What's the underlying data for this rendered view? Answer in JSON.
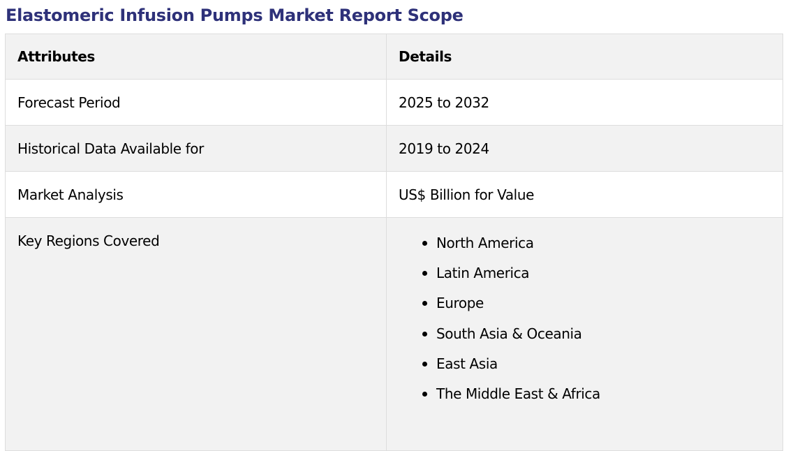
{
  "title": "Elastomeric Infusion Pumps Market Report Scope",
  "table": {
    "headers": [
      "Attributes",
      "Details"
    ],
    "rows": [
      {
        "attribute": "Forecast Period",
        "detail": "2025 to 2032"
      },
      {
        "attribute": "Historical Data Available for",
        "detail": "2019 to 2024"
      },
      {
        "attribute": "Market Analysis",
        "detail": "US$ Billion for Value"
      }
    ],
    "regions": {
      "attribute": "Key Regions Covered",
      "items": [
        "North America",
        "Latin America",
        "Europe",
        "South Asia & Oceania",
        "East Asia",
        "The Middle East & Africa"
      ]
    }
  },
  "colors": {
    "title": "#2e3179",
    "shaded_row": "#f2f2f2",
    "border": "#dddddd"
  }
}
